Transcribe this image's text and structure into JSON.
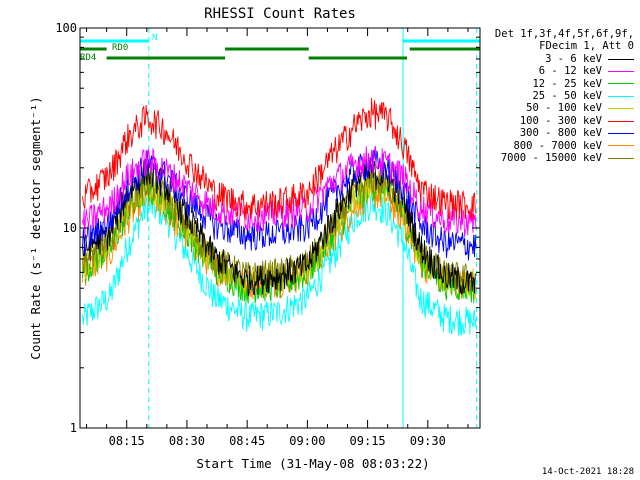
{
  "chart_data": {
    "type": "line",
    "title": "RHESSI Count Rates",
    "xlabel": "Start Time (31-May-08 08:03:22)",
    "ylabel": "Count Rate (s⁻¹ detector segment⁻¹)",
    "yscale": "log",
    "ylim": [
      1,
      100
    ],
    "xlim": [
      "08:03:22",
      "09:43:00"
    ],
    "x_ticks": [
      "08:15",
      "08:30",
      "08:45",
      "09:00",
      "09:15",
      "09:30"
    ],
    "y_ticks": [
      "1",
      "10",
      "100"
    ],
    "grid": false,
    "legend_position": "right",
    "legend_header": [
      "Det 1f,3f,4f,5f,6f,9f,",
      "FDecim 1, Att 0"
    ],
    "series": [
      {
        "name": "3 - 6 keV",
        "color": "#000000",
        "x": [
          "08:04",
          "08:11",
          "08:15",
          "08:20",
          "08:24",
          "08:30",
          "08:37",
          "08:45",
          "08:53",
          "09:00",
          "09:06",
          "09:12",
          "09:16",
          "09:20",
          "09:24",
          "09:28",
          "09:34",
          "09:42"
        ],
        "values": [
          7.8,
          9.5,
          15,
          19.5,
          17,
          11.5,
          7.2,
          5.5,
          5.8,
          6.5,
          11,
          17,
          19,
          18,
          14,
          8.2,
          5.8,
          5.2
        ]
      },
      {
        "name": "6 - 12 keV",
        "color": "#ff00ff",
        "x": [
          "08:04",
          "08:11",
          "08:15",
          "08:20",
          "08:24",
          "08:30",
          "08:37",
          "08:45",
          "08:53",
          "09:00",
          "09:06",
          "09:12",
          "09:16",
          "09:20",
          "09:24",
          "09:28",
          "09:34",
          "09:42"
        ],
        "values": [
          10.5,
          13,
          18,
          22,
          20,
          16,
          12.5,
          11.5,
          11.8,
          12.5,
          17,
          21,
          22.5,
          21,
          18,
          13,
          11,
          10.8
        ]
      },
      {
        "name": "12 - 25 keV",
        "color": "#00cc00",
        "x": [
          "08:04",
          "08:11",
          "08:15",
          "08:20",
          "08:24",
          "08:30",
          "08:37",
          "08:45",
          "08:53",
          "09:00",
          "09:06",
          "09:12",
          "09:16",
          "09:20",
          "09:24",
          "09:28",
          "09:34",
          "09:42"
        ],
        "values": [
          6.2,
          8,
          12,
          16,
          14,
          9.5,
          6.3,
          5,
          5.2,
          6,
          9,
          14,
          16.5,
          15.5,
          11.5,
          7,
          5.3,
          5
        ]
      },
      {
        "name": "25 - 50 keV",
        "color": "#00ffff",
        "x": [
          "08:04",
          "08:11",
          "08:15",
          "08:20",
          "08:24",
          "08:30",
          "08:37",
          "08:45",
          "08:53",
          "09:00",
          "09:06",
          "09:12",
          "09:16",
          "09:20",
          "09:24",
          "09:28",
          "09:34",
          "09:42"
        ],
        "values": [
          3.5,
          4.6,
          8,
          13,
          12,
          7.5,
          4.5,
          3.6,
          3.8,
          4.5,
          7,
          11.5,
          13.5,
          12,
          8.5,
          4.5,
          3.6,
          3.4
        ]
      },
      {
        "name": "50 - 100 keV",
        "color": "#cccc00",
        "x": [
          "08:04",
          "08:11",
          "08:15",
          "08:20",
          "08:24",
          "08:30",
          "08:37",
          "08:45",
          "08:53",
          "09:00",
          "09:06",
          "09:12",
          "09:16",
          "09:20",
          "09:24",
          "09:28",
          "09:34",
          "09:42"
        ],
        "values": [
          6.5,
          8.5,
          12.5,
          16.5,
          14.5,
          10,
          6.8,
          5.5,
          5.7,
          6.4,
          9.5,
          14.5,
          17,
          16,
          12,
          7.3,
          5.7,
          5.3
        ]
      },
      {
        "name": "100 - 300 keV",
        "color": "#ff0000",
        "x": [
          "08:04",
          "08:11",
          "08:15",
          "08:20",
          "08:24",
          "08:30",
          "08:37",
          "08:45",
          "08:53",
          "09:00",
          "09:06",
          "09:12",
          "09:16",
          "09:20",
          "09:24",
          "09:28",
          "09:34",
          "09:42"
        ],
        "values": [
          14,
          19,
          28,
          36,
          32,
          22,
          15,
          13,
          13.5,
          15,
          23,
          33,
          38,
          36,
          26,
          16,
          13.5,
          13
        ]
      },
      {
        "name": "300 - 800 keV",
        "color": "#0000ff",
        "x": [
          "08:04",
          "08:11",
          "08:15",
          "08:20",
          "08:24",
          "08:30",
          "08:37",
          "08:45",
          "08:53",
          "09:00",
          "09:06",
          "09:12",
          "09:16",
          "09:20",
          "09:24",
          "09:28",
          "09:34",
          "09:42"
        ],
        "values": [
          8.5,
          11,
          16,
          21,
          19,
          14,
          10.5,
          9.2,
          9.4,
          10.2,
          14.5,
          19.5,
          21.5,
          20,
          16,
          10.5,
          8.5,
          8.2
        ]
      },
      {
        "name": "800 - 7000 keV",
        "color": "#ff8800",
        "x": [
          "08:04",
          "08:11",
          "08:15",
          "08:20",
          "08:24",
          "08:30",
          "08:37",
          "08:45",
          "08:53",
          "09:00",
          "09:06",
          "09:12",
          "09:16",
          "09:20",
          "09:24",
          "09:28",
          "09:34",
          "09:42"
        ],
        "values": [
          6,
          7.5,
          11,
          14.5,
          13,
          9,
          6.3,
          5.3,
          5.4,
          6,
          8.7,
          13,
          15,
          14.2,
          10.8,
          6.8,
          5.4,
          5.2
        ]
      },
      {
        "name": "7000 - 15000 keV",
        "color": "#808000",
        "x": [
          "08:04",
          "08:11",
          "08:15",
          "08:20",
          "08:24",
          "08:30",
          "08:37",
          "08:45",
          "08:53",
          "09:00",
          "09:06",
          "09:12",
          "09:16",
          "09:20",
          "09:24",
          "09:28",
          "09:34",
          "09:42"
        ],
        "values": [
          6.8,
          8.8,
          13,
          17,
          15,
          10.5,
          7,
          5.8,
          6,
          6.7,
          10,
          15,
          17.5,
          16.5,
          12.5,
          7.6,
          5.9,
          5.6
        ]
      }
    ],
    "vertical_markers": [
      {
        "time": "08:03:22",
        "color": "#00ffff",
        "style": "solid"
      },
      {
        "time": "08:20:30",
        "color": "#00ffff",
        "style": "dashed"
      },
      {
        "time": "09:23:50",
        "color": "#00ffff",
        "style": "solid"
      },
      {
        "time": "09:42:10",
        "color": "#00ffff",
        "style": "dashed"
      }
    ],
    "flag_bars": [
      {
        "label": "N",
        "color": "#00ffff",
        "intervals": [
          [
            "08:03:22",
            "08:20:30"
          ],
          [
            "09:23:50",
            "09:43:00"
          ]
        ]
      },
      {
        "label": "RD0",
        "color": "#008000",
        "intervals": [
          [
            "08:03:22",
            "08:10:00"
          ],
          [
            "08:39:30",
            "09:00:20"
          ],
          [
            "09:25:30",
            "09:43:00"
          ]
        ]
      },
      {
        "label": "RD4",
        "color": "#008000",
        "intervals": [
          [
            "08:10:00",
            "08:39:30"
          ],
          [
            "09:00:20",
            "09:24:50"
          ]
        ]
      }
    ],
    "footer": "14-Oct-2021 18:28"
  }
}
